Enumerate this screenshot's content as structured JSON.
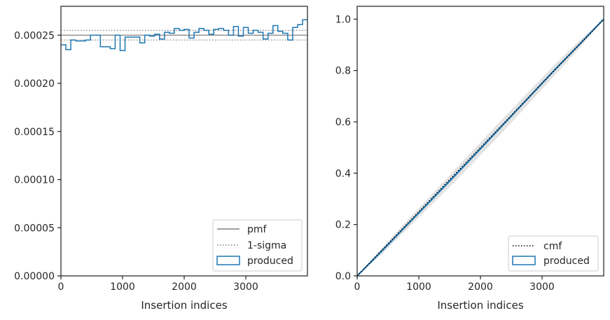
{
  "chart_data": [
    {
      "type": "line",
      "panel": "left",
      "title": "",
      "xlabel": "Insertion indices",
      "ylabel": "",
      "xlim": [
        0,
        4000
      ],
      "ylim": [
        0,
        0.00028
      ],
      "xticks": [
        0,
        1000,
        2000,
        3000
      ],
      "xtick_labels": [
        "0",
        "1000",
        "2000",
        "3000"
      ],
      "yticks": [
        0,
        5e-05,
        0.0001,
        0.00015,
        0.0002,
        0.00025
      ],
      "ytick_labels": [
        "0.00000",
        "0.00005",
        "0.00010",
        "0.00015",
        "0.00020",
        "0.00025"
      ],
      "grid": false,
      "legend_position": "lower-right",
      "legend": [
        "pmf",
        "1-sigma",
        "produced"
      ],
      "series": [
        {
          "name": "pmf",
          "style": "solid",
          "color": "#808080",
          "y": 0.00025
        },
        {
          "name": "1-sigma",
          "style": "dotted",
          "color": "#808080",
          "y": [
            0.000245,
            0.000255
          ]
        },
        {
          "name": "produced",
          "style": "step",
          "color": "#1f77b4",
          "bin_edges": [
            0,
            80,
            160,
            240,
            320,
            400,
            480,
            560,
            640,
            720,
            800,
            880,
            960,
            1040,
            1120,
            1200,
            1280,
            1360,
            1440,
            1520,
            1600,
            1680,
            1760,
            1840,
            1920,
            2000,
            2080,
            2160,
            2240,
            2320,
            2400,
            2480,
            2560,
            2640,
            2720,
            2800,
            2880,
            2960,
            3040,
            3120,
            3200,
            3280,
            3360,
            3440,
            3520,
            3600,
            3680,
            3760,
            3840,
            3920,
            4000
          ],
          "values": [
            0.00024,
            0.000235,
            0.000245,
            0.000244,
            0.000244,
            0.000245,
            0.00025,
            0.00025,
            0.000238,
            0.000238,
            0.000236,
            0.00025,
            0.000234,
            0.000248,
            0.000248,
            0.000248,
            0.000242,
            0.00025,
            0.000249,
            0.000251,
            0.000246,
            0.000253,
            0.000252,
            0.000257,
            0.000255,
            0.000256,
            0.000247,
            0.000253,
            0.000257,
            0.000255,
            0.000251,
            0.000256,
            0.000257,
            0.000255,
            0.00025,
            0.000259,
            0.000249,
            0.000258,
            0.000252,
            0.000255,
            0.000253,
            0.000246,
            0.000252,
            0.00026,
            0.000254,
            0.000252,
            0.000245,
            0.000258,
            0.000261,
            0.000266
          ]
        }
      ]
    },
    {
      "type": "line",
      "panel": "right",
      "title": "",
      "xlabel": "Insertion indices",
      "ylabel": "",
      "xlim": [
        0,
        4000
      ],
      "ylim": [
        0,
        1.05
      ],
      "xticks": [
        0,
        1000,
        2000,
        3000
      ],
      "xtick_labels": [
        "0",
        "1000",
        "2000",
        "3000"
      ],
      "yticks": [
        0,
        0.2,
        0.4,
        0.6,
        0.8,
        1.0
      ],
      "ytick_labels": [
        "0.0",
        "0.2",
        "0.4",
        "0.6",
        "0.8",
        "1.0"
      ],
      "grid": false,
      "legend_position": "lower-right",
      "legend": [
        "cmf",
        "produced"
      ],
      "series": [
        {
          "name": "cmf",
          "style": "dotted",
          "color": "#000000",
          "x": [
            0,
            4000
          ],
          "y": [
            0,
            1.0
          ]
        },
        {
          "name": "produced",
          "style": "solid",
          "color": "#1f77b4",
          "x": [
            0,
            400,
            800,
            1200,
            1600,
            2000,
            2400,
            2800,
            3200,
            3600,
            4000
          ],
          "y": [
            0,
            0.097,
            0.196,
            0.295,
            0.394,
            0.495,
            0.597,
            0.699,
            0.801,
            0.9,
            1.0
          ]
        }
      ],
      "background_bands": {
        "color": "#b0b0b0",
        "lower": [
          0,
          0.085,
          0.18,
          0.275,
          0.37,
          0.47,
          0.57,
          0.675,
          0.78,
          0.885,
          1.0
        ],
        "upper": [
          0,
          0.108,
          0.213,
          0.315,
          0.418,
          0.52,
          0.622,
          0.722,
          0.822,
          0.915,
          1.0
        ]
      }
    }
  ]
}
